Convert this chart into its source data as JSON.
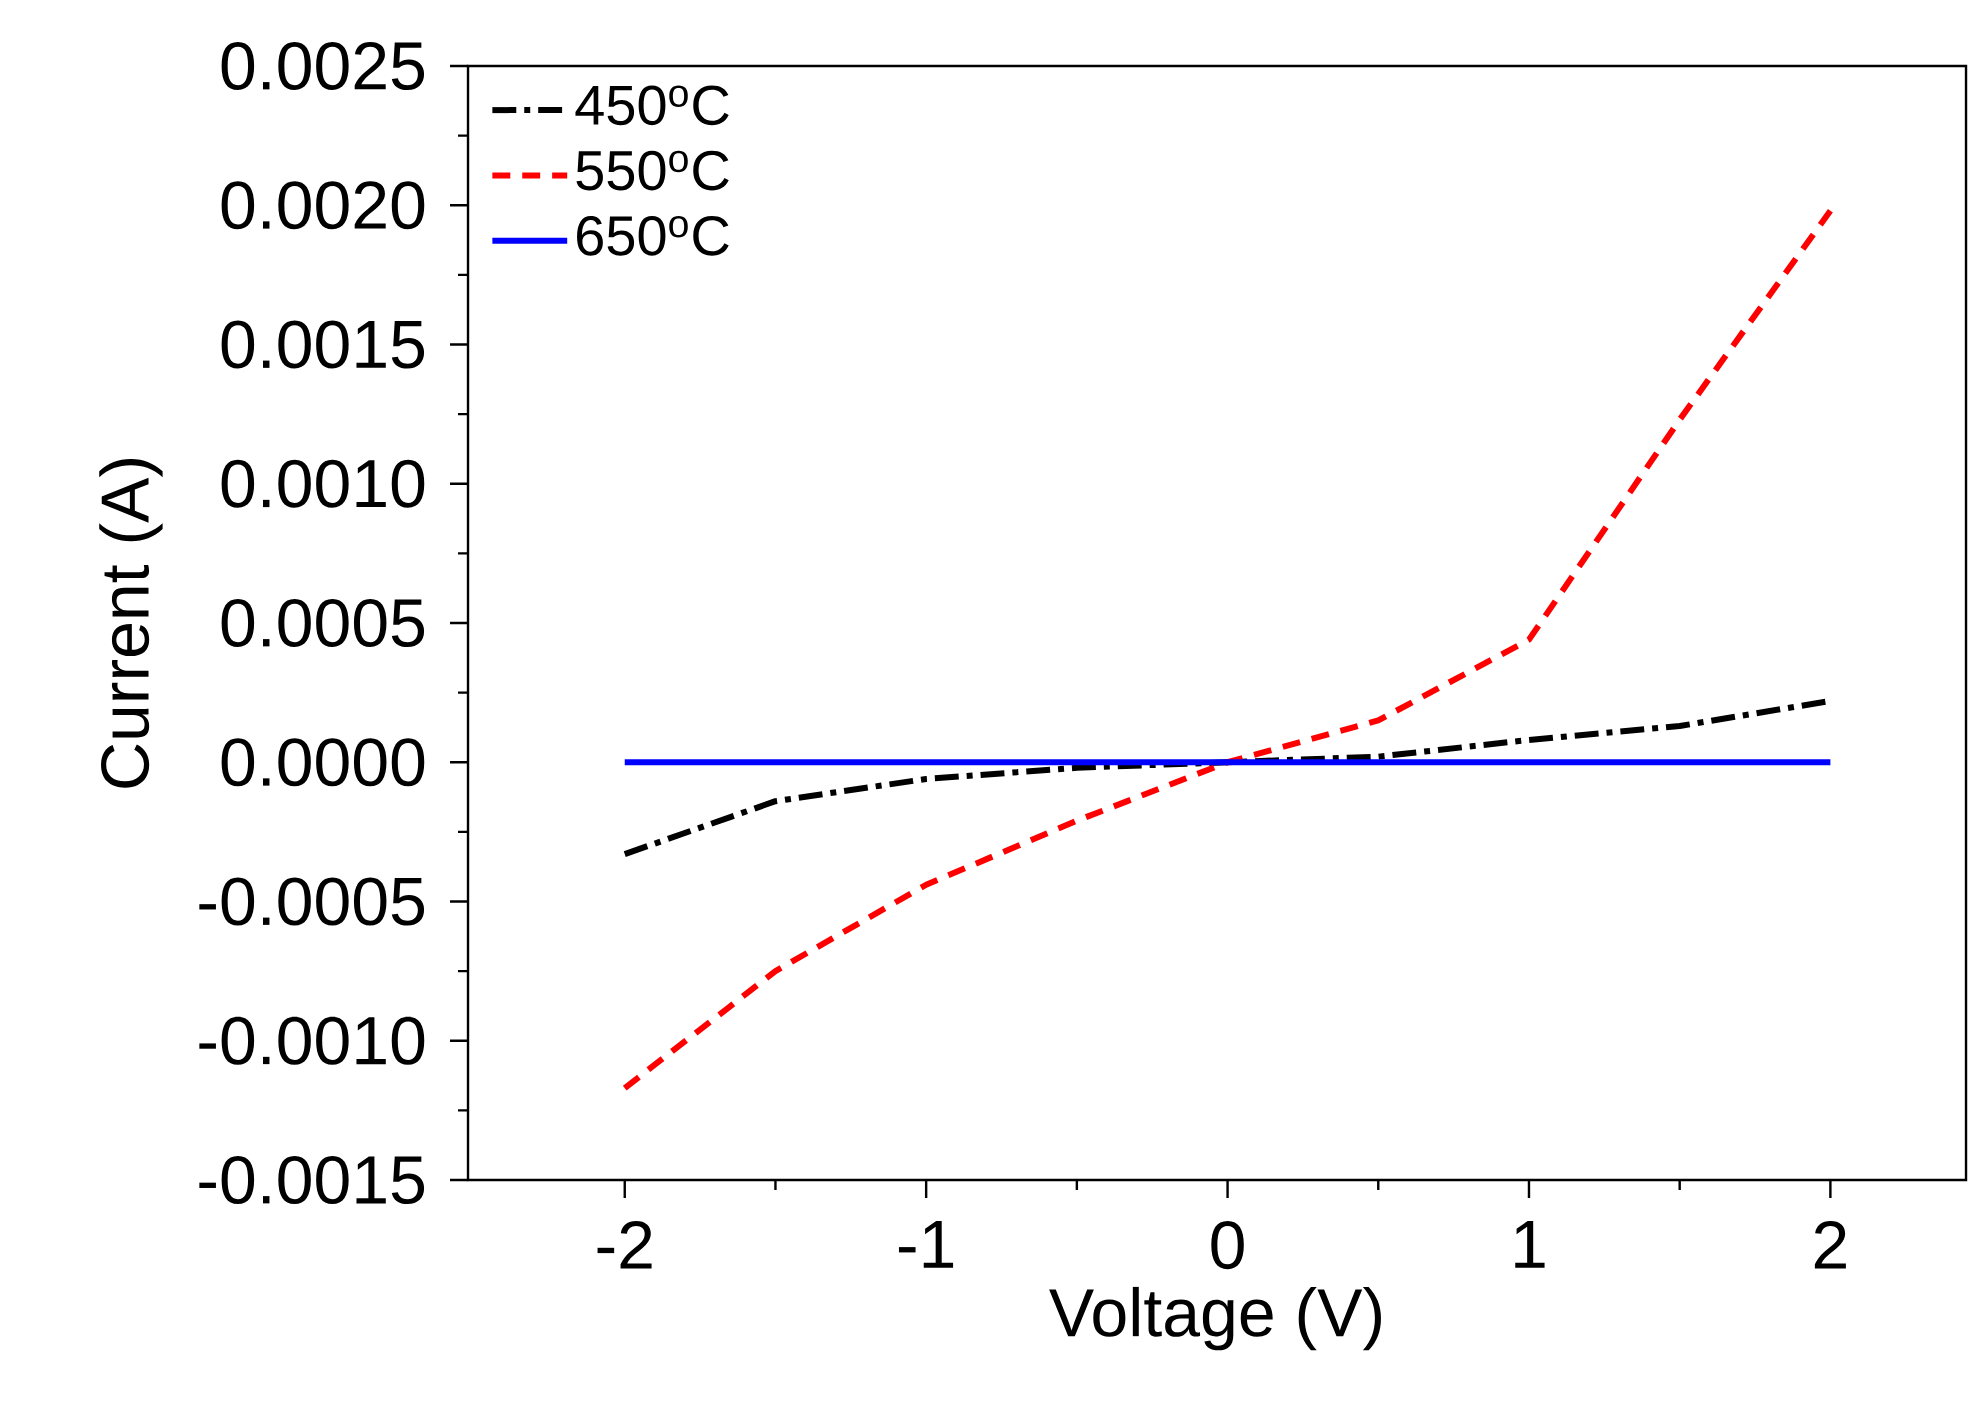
{
  "chart_data": {
    "type": "line",
    "xlabel": "Voltage (V)",
    "ylabel": "Current (A)",
    "x": [
      -2,
      -1.5,
      -1,
      -0.5,
      0,
      0.5,
      1,
      1.5,
      2
    ],
    "series": [
      {
        "name": "450$^{o}$C",
        "color": "#000000",
        "line_style": "dashdot",
        "values": [
          -0.00033,
          -0.00014,
          -6e-05,
          -2e-05,
          0,
          2e-05,
          8e-05,
          0.00013,
          0.00022
        ]
      },
      {
        "name": "550$^{o}$C",
        "color": "#ff0000",
        "line_style": "dashed",
        "values": [
          -0.00117,
          -0.00075,
          -0.00044,
          -0.00021,
          0,
          0.00015,
          0.00044,
          0.00123,
          0.00198
        ]
      },
      {
        "name": "650$^{o}$C",
        "color": "#0000ff",
        "line_style": "solid",
        "values": [
          0,
          0,
          0,
          0,
          0,
          0,
          0,
          0,
          0
        ]
      }
    ],
    "xlim": [
      -2.52,
      2.45
    ],
    "ylim": [
      -0.0015,
      0.0025
    ],
    "xticks": [
      -2,
      -1,
      0,
      1,
      2
    ],
    "yticks": [
      {
        "value": -0.0015,
        "label": "-0.0015"
      },
      {
        "value": -0.001,
        "label": "-0.0010"
      },
      {
        "value": -0.0005,
        "label": "-0.0005"
      },
      {
        "value": 0,
        "label": "0.0000"
      },
      {
        "value": 0.0005,
        "label": "0.0005"
      },
      {
        "value": 0.001,
        "label": "0.0010"
      },
      {
        "value": 0.0015,
        "label": "0.0015"
      },
      {
        "value": 0.002,
        "label": "0.0020"
      },
      {
        "value": 0.0025,
        "label": "0.0025"
      }
    ],
    "grid": false,
    "legend": "top left",
    "marker": "none"
  }
}
